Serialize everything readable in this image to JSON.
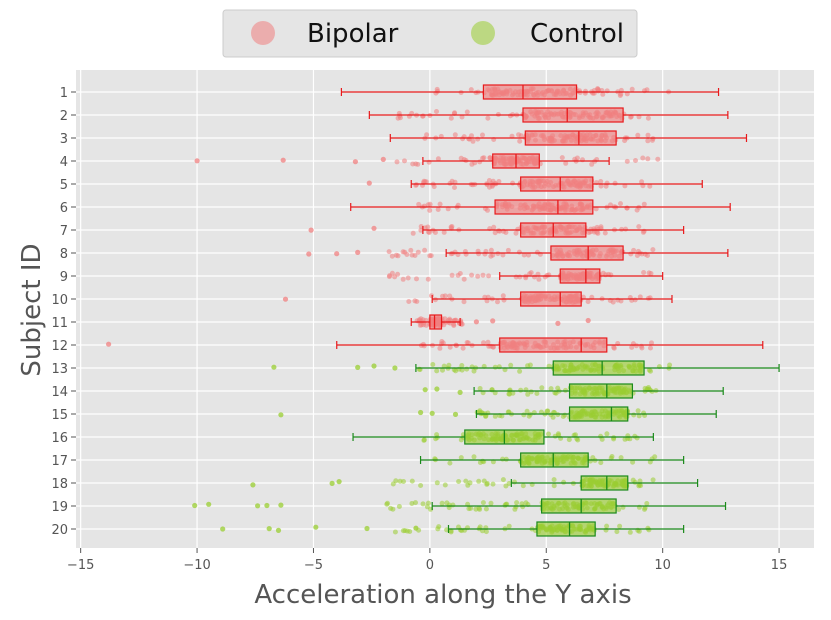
{
  "chart_data": {
    "type": "boxplot-strip",
    "orientation": "horizontal",
    "xlabel": "Acceleration along the Y axis",
    "ylabel": "Subject ID",
    "xlim": [
      -15.2,
      16.5
    ],
    "xticks": [
      -15,
      -10,
      -5,
      0,
      5,
      10,
      15
    ],
    "xtick_labels": [
      "−15",
      "−10",
      "−5",
      "0",
      "5",
      "10",
      "15"
    ],
    "grid": true,
    "legend": {
      "position": "top-center",
      "entries": [
        {
          "label": "Bipolar",
          "color": "#f08080"
        },
        {
          "label": "Control",
          "color": "#9acd32"
        }
      ]
    },
    "groups": {
      "Bipolar": {
        "box_edge": "#e8191b",
        "fill": "#f08080",
        "point": "#f08080"
      },
      "Control": {
        "box_edge": "#1a8a1a",
        "fill": "#9acd32",
        "point": "#9acd32"
      }
    },
    "subjects": [
      {
        "id": "1",
        "group": "Bipolar",
        "whisker_low": -3.8,
        "q1": 2.3,
        "median": 4.0,
        "q3": 6.3,
        "whisker_high": 12.4,
        "range": [
          0,
          10.3
        ],
        "outliers": []
      },
      {
        "id": "2",
        "group": "Bipolar",
        "whisker_low": -2.6,
        "q1": 4.0,
        "median": 5.9,
        "q3": 8.3,
        "whisker_high": 12.8,
        "range": [
          -1.5,
          9.8
        ],
        "outliers": []
      },
      {
        "id": "3",
        "group": "Bipolar",
        "whisker_low": -1.7,
        "q1": 4.1,
        "median": 6.4,
        "q3": 8.0,
        "whisker_high": 13.6,
        "range": [
          -0.3,
          10.0
        ],
        "outliers": []
      },
      {
        "id": "4",
        "group": "Bipolar",
        "whisker_low": -0.3,
        "q1": 2.7,
        "median": 3.7,
        "q3": 4.7,
        "whisker_high": 7.7,
        "range": [
          -1.5,
          10.0
        ],
        "outliers": [
          -10.0,
          -6.3,
          -3.2,
          -2.0
        ]
      },
      {
        "id": "5",
        "group": "Bipolar",
        "whisker_low": -0.8,
        "q1": 3.9,
        "median": 5.6,
        "q3": 7.0,
        "whisker_high": 11.7,
        "range": [
          -1.0,
          9.5
        ],
        "outliers": [
          -2.6
        ]
      },
      {
        "id": "6",
        "group": "Bipolar",
        "whisker_low": -3.4,
        "q1": 2.8,
        "median": 5.5,
        "q3": 7.0,
        "whisker_high": 12.9,
        "range": [
          -0.5,
          9.6
        ],
        "outliers": []
      },
      {
        "id": "7",
        "group": "Bipolar",
        "whisker_low": -0.3,
        "q1": 3.9,
        "median": 5.3,
        "q3": 6.7,
        "whisker_high": 10.9,
        "range": [
          -1.0,
          9.7
        ],
        "outliers": [
          -5.1,
          -2.4
        ]
      },
      {
        "id": "8",
        "group": "Bipolar",
        "whisker_low": 0.7,
        "q1": 5.2,
        "median": 6.8,
        "q3": 8.3,
        "whisker_high": 12.8,
        "range": [
          -1.8,
          9.7
        ],
        "outliers": [
          -5.2,
          -4.0,
          -3.1
        ]
      },
      {
        "id": "9",
        "group": "Bipolar",
        "whisker_low": 3.0,
        "q1": 5.6,
        "median": 6.7,
        "q3": 7.3,
        "whisker_high": 10.0,
        "range": [
          -1.8,
          9.5
        ],
        "outliers": []
      },
      {
        "id": "10",
        "group": "Bipolar",
        "whisker_low": 0.1,
        "q1": 3.9,
        "median": 5.6,
        "q3": 6.5,
        "whisker_high": 10.4,
        "range": [
          -1.2,
          9.8
        ],
        "outliers": [
          -6.2
        ]
      },
      {
        "id": "11",
        "group": "Bipolar",
        "whisker_low": -0.8,
        "q1": 0.0,
        "median": 0.2,
        "q3": 0.5,
        "whisker_high": 1.3,
        "range": [
          -0.6,
          1.4
        ],
        "outliers": [
          2.0,
          2.7,
          5.5,
          6.8
        ]
      },
      {
        "id": "12",
        "group": "Bipolar",
        "whisker_low": -4.0,
        "q1": 3.0,
        "median": 6.5,
        "q3": 7.6,
        "whisker_high": 14.3,
        "range": [
          -0.5,
          9.6
        ],
        "outliers": [
          -13.8
        ]
      },
      {
        "id": "13",
        "group": "Control",
        "whisker_low": -0.6,
        "q1": 5.3,
        "median": 7.4,
        "q3": 9.2,
        "whisker_high": 15.0,
        "range": [
          -0.5,
          10.3
        ],
        "outliers": [
          -6.7,
          -3.1,
          -2.4,
          -1.5
        ]
      },
      {
        "id": "14",
        "group": "Control",
        "whisker_low": 1.9,
        "q1": 6.0,
        "median": 7.6,
        "q3": 8.7,
        "whisker_high": 12.6,
        "range": [
          2.0,
          9.8
        ],
        "outliers": [
          -0.2,
          0.3,
          1.3
        ]
      },
      {
        "id": "15",
        "group": "Control",
        "whisker_low": 2.0,
        "q1": 6.0,
        "median": 7.8,
        "q3": 8.5,
        "whisker_high": 12.3,
        "range": [
          2.0,
          9.7
        ],
        "outliers": [
          -6.4,
          -0.4,
          0.1,
          1.1
        ]
      },
      {
        "id": "16",
        "group": "Control",
        "whisker_low": -3.3,
        "q1": 1.5,
        "median": 3.2,
        "q3": 4.9,
        "whisker_high": 9.6,
        "range": [
          -0.5,
          9.5
        ],
        "outliers": []
      },
      {
        "id": "17",
        "group": "Control",
        "whisker_low": -0.4,
        "q1": 3.9,
        "median": 5.3,
        "q3": 6.8,
        "whisker_high": 10.9,
        "range": [
          -0.3,
          9.7
        ],
        "outliers": []
      },
      {
        "id": "18",
        "group": "Control",
        "whisker_low": 3.5,
        "q1": 6.5,
        "median": 7.6,
        "q3": 8.5,
        "whisker_high": 11.5,
        "range": [
          -2.0,
          9.7
        ],
        "outliers": [
          -7.6,
          -4.2,
          -3.9
        ]
      },
      {
        "id": "19",
        "group": "Control",
        "whisker_low": 0.1,
        "q1": 4.8,
        "median": 6.5,
        "q3": 8.0,
        "whisker_high": 12.7,
        "range": [
          -2.0,
          9.8
        ],
        "outliers": [
          -10.1,
          -9.5,
          -7.4,
          -7.0,
          -6.4
        ]
      },
      {
        "id": "20",
        "group": "Control",
        "whisker_low": 0.8,
        "q1": 4.6,
        "median": 6.0,
        "q3": 7.1,
        "whisker_high": 10.9,
        "range": [
          -2.0,
          9.6
        ],
        "outliers": [
          -8.9,
          -6.9,
          -6.5,
          -4.9,
          -2.7
        ]
      }
    ]
  }
}
